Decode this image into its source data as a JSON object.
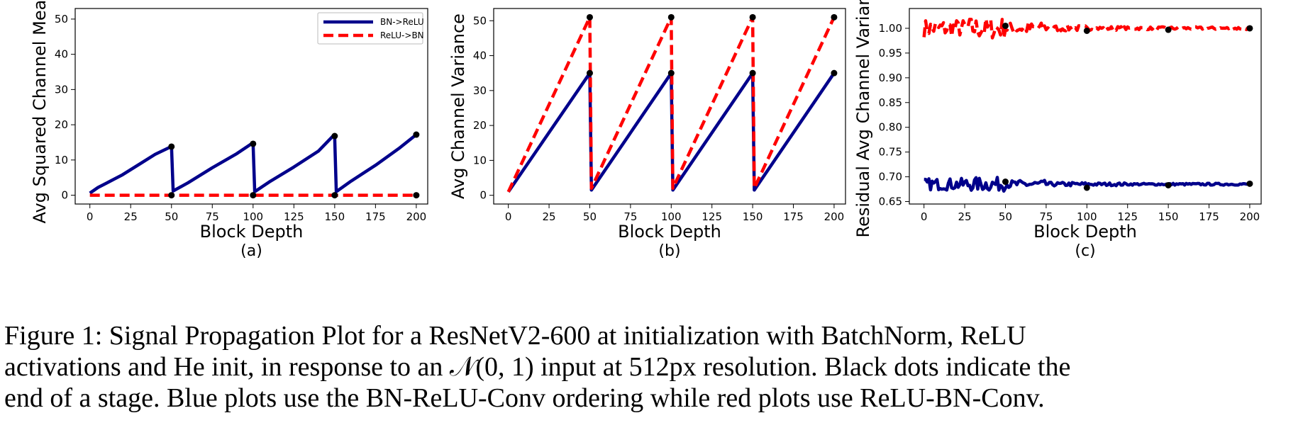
{
  "chart_data": [
    {
      "type": "line",
      "sublabel": "(a)",
      "xlabel": "Block Depth",
      "ylabel": "Avg Squared Channel Mean",
      "xlim": [
        -9,
        207
      ],
      "ylim": [
        -2.5,
        53
      ],
      "xticks": [
        0,
        25,
        50,
        75,
        100,
        125,
        150,
        175,
        200
      ],
      "yticks": [
        0,
        10,
        20,
        30,
        40,
        50
      ],
      "ytick_labels": [
        "0",
        "10",
        "20",
        "30",
        "40",
        "50"
      ],
      "legend": {
        "position": "top-right",
        "entries": [
          "BN->ReLU",
          "ReLU->BN"
        ]
      },
      "series": [
        {
          "name": "BN->ReLU",
          "color": "#00008b",
          "style": "solid",
          "x": [
            0,
            5,
            10,
            20,
            30,
            40,
            49,
            50,
            51,
            60,
            75,
            90,
            99,
            100,
            101,
            110,
            125,
            140,
            149,
            150,
            151,
            160,
            175,
            190,
            200
          ],
          "y": [
            0.6,
            2.2,
            3.4,
            5.8,
            8.7,
            11.6,
            13.6,
            13.8,
            1.2,
            3.5,
            7.8,
            11.8,
            14.6,
            14.6,
            1.0,
            3.8,
            8.0,
            12.5,
            16.8,
            16.8,
            1.0,
            4.0,
            8.5,
            13.5,
            17.2
          ]
        },
        {
          "name": "ReLU->BN",
          "color": "#ff0000",
          "style": "dashed",
          "x": [
            0,
            200
          ],
          "y": [
            0,
            0
          ]
        }
      ],
      "stage_markers": [
        {
          "x": 50,
          "y": 13.8
        },
        {
          "x": 50,
          "y": 0
        },
        {
          "x": 100,
          "y": 14.6
        },
        {
          "x": 100,
          "y": 0
        },
        {
          "x": 150,
          "y": 16.8
        },
        {
          "x": 150,
          "y": 0
        },
        {
          "x": 200,
          "y": 17.2
        },
        {
          "x": 200,
          "y": 0
        }
      ]
    },
    {
      "type": "line",
      "sublabel": "(b)",
      "xlabel": "Block Depth",
      "ylabel": "Avg Channel Variance",
      "xlim": [
        -9,
        207
      ],
      "ylim": [
        -2.5,
        53.5
      ],
      "xticks": [
        0,
        25,
        50,
        75,
        100,
        125,
        150,
        175,
        200
      ],
      "yticks": [
        0,
        10,
        20,
        30,
        40,
        50
      ],
      "ytick_labels": [
        "0",
        "10",
        "20",
        "30",
        "40",
        "50"
      ],
      "series": [
        {
          "name": "BN->ReLU",
          "color": "#00008b",
          "style": "solid",
          "x": [
            0,
            50,
            51,
            100,
            101,
            150,
            151,
            200
          ],
          "y": [
            1.0,
            35.0,
            1.5,
            35.0,
            1.5,
            35.0,
            1.5,
            35.0
          ]
        },
        {
          "name": "ReLU->BN",
          "color": "#ff0000",
          "style": "dashed",
          "x": [
            0,
            50,
            51,
            100,
            101,
            150,
            151,
            200
          ],
          "y": [
            1.0,
            51.0,
            2.0,
            51.0,
            2.0,
            51.0,
            2.0,
            51.0
          ]
        }
      ],
      "stage_markers": [
        {
          "x": 50,
          "y": 51
        },
        {
          "x": 50,
          "y": 35
        },
        {
          "x": 100,
          "y": 51
        },
        {
          "x": 100,
          "y": 35
        },
        {
          "x": 150,
          "y": 51
        },
        {
          "x": 150,
          "y": 35
        },
        {
          "x": 200,
          "y": 51
        },
        {
          "x": 200,
          "y": 35
        }
      ]
    },
    {
      "type": "line",
      "sublabel": "(c)",
      "xlabel": "Block Depth",
      "ylabel": "Residual Avg Channel Variance",
      "xlim": [
        -9,
        207
      ],
      "ylim": [
        0.645,
        1.04
      ],
      "xticks": [
        0,
        25,
        50,
        75,
        100,
        125,
        150,
        175,
        200
      ],
      "yticks": [
        0.65,
        0.7,
        0.75,
        0.8,
        0.85,
        0.9,
        0.95,
        1.0
      ],
      "ytick_labels": [
        "0.65",
        "0.70",
        "0.75",
        "0.80",
        "0.85",
        "0.90",
        "0.95",
        "1.00"
      ],
      "series": [
        {
          "name": "ReLU->BN",
          "color": "#ff0000",
          "style": "dashed",
          "center": 1.0,
          "noise": [
            0.018,
            0.022,
            0.012,
            0.006,
            0.004,
            0.003,
            0.003,
            0.003
          ]
        },
        {
          "name": "BN->ReLU",
          "color": "#00008b",
          "style": "solid",
          "center": 0.685,
          "noise": [
            0.012,
            0.014,
            0.008,
            0.004,
            0.003,
            0.002,
            0.002,
            0.002
          ]
        }
      ],
      "stage_markers": [
        {
          "x": 50,
          "y": 1.005
        },
        {
          "x": 50,
          "y": 0.69
        },
        {
          "x": 100,
          "y": 0.995
        },
        {
          "x": 100,
          "y": 0.678
        },
        {
          "x": 150,
          "y": 0.997
        },
        {
          "x": 150,
          "y": 0.683
        },
        {
          "x": 200,
          "y": 1.0
        },
        {
          "x": 200,
          "y": 0.686
        }
      ]
    }
  ],
  "caption": {
    "line1": "Figure 1:  Signal Propagation Plot for a ResNetV2-600 at initialization with BatchNorm, ReLU",
    "line2": "activations and He init, in response to an 𝒩(0, 1) input at 512px resolution. Black dots indicate the",
    "line3": "end of a stage. Blue plots use the BN-ReLU-Conv ordering while red plots use ReLU-BN-Conv."
  }
}
